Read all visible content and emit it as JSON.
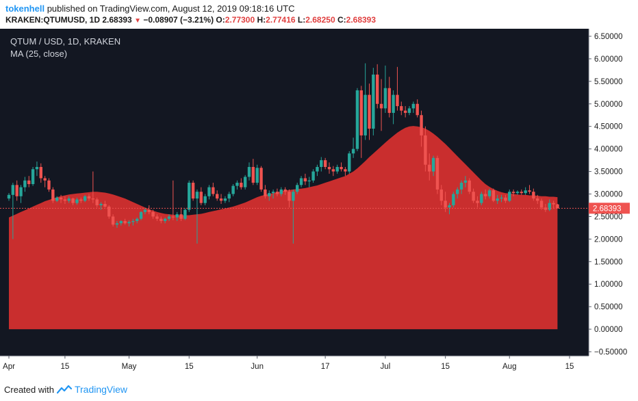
{
  "header": {
    "author": "tokenhell",
    "published_text": "published on TradingView.com, August 12, 2019 09:18:16 UTC"
  },
  "symbol_line": {
    "symbol": "KRAKEN:QTUMUSD, 1D",
    "last": "2.68393",
    "arrow": "▼",
    "change": "−0.08907 (−3.21%)",
    "o_label": "O:",
    "o_value": "2.77300",
    "h_label": "H:",
    "h_value": "2.77416",
    "l_label": "L:",
    "l_value": "2.68250",
    "c_label": "C:",
    "c_value": "2.68393"
  },
  "legend": {
    "title": "QTUM / USD, 1D, KRAKEN",
    "indicator": "MA (25, close)"
  },
  "footer": {
    "created_with": "Created with",
    "brand": "TradingView"
  },
  "colors": {
    "background": "#131722",
    "up": "#26a69a",
    "down": "#ef5350",
    "ma_fill": "#d32f2f",
    "price_label": "#ef5350",
    "brand": "#2196f3"
  },
  "chart_data": {
    "type": "candlestick",
    "ylim": [
      -0.5,
      6.5
    ],
    "yticks": [
      "6.50000",
      "6.00000",
      "5.50000",
      "5.00000",
      "4.50000",
      "4.00000",
      "3.50000",
      "3.00000",
      "2.50000",
      "2.00000",
      "1.50000",
      "1.00000",
      "0.50000",
      "0.00000",
      "−0.50000"
    ],
    "xticks": [
      "Apr",
      "15",
      "May",
      "15",
      "Jun",
      "17",
      "Jul",
      "15",
      "Aug",
      "15"
    ],
    "last_price_label": "2.68393",
    "last_price": 2.68393,
    "candles_ohlc": [
      [
        2.9,
        3.02,
        2.85,
        2.98
      ],
      [
        2.98,
        3.25,
        2.0,
        3.2
      ],
      [
        3.2,
        3.3,
        2.85,
        2.95
      ],
      [
        2.95,
        3.2,
        2.8,
        3.15
      ],
      [
        3.15,
        3.38,
        3.05,
        3.3
      ],
      [
        3.3,
        3.4,
        3.15,
        3.22
      ],
      [
        3.22,
        3.6,
        3.18,
        3.55
      ],
      [
        3.55,
        3.72,
        3.4,
        3.6
      ],
      [
        3.6,
        3.68,
        3.25,
        3.35
      ],
      [
        3.35,
        3.4,
        3.15,
        3.3
      ],
      [
        3.3,
        3.35,
        3.05,
        3.1
      ],
      [
        3.1,
        3.15,
        2.8,
        2.85
      ],
      [
        2.85,
        2.95,
        2.82,
        2.92
      ],
      [
        2.92,
        2.98,
        2.8,
        2.88
      ],
      [
        2.88,
        2.95,
        2.78,
        2.85
      ],
      [
        2.85,
        2.95,
        2.8,
        2.9
      ],
      [
        2.9,
        2.92,
        2.75,
        2.8
      ],
      [
        2.8,
        2.92,
        2.76,
        2.88
      ],
      [
        2.88,
        2.92,
        2.8,
        2.85
      ],
      [
        2.85,
        2.98,
        2.82,
        2.95
      ],
      [
        2.95,
        3.0,
        2.85,
        2.9
      ],
      [
        2.9,
        3.5,
        2.8,
        2.88
      ],
      [
        2.88,
        2.92,
        2.7,
        2.75
      ],
      [
        2.75,
        2.82,
        2.65,
        2.78
      ],
      [
        2.78,
        2.85,
        2.7,
        2.72
      ],
      [
        2.72,
        2.75,
        2.45,
        2.5
      ],
      [
        2.5,
        2.55,
        2.28,
        2.32
      ],
      [
        2.32,
        2.4,
        2.25,
        2.35
      ],
      [
        2.35,
        2.42,
        2.3,
        2.4
      ],
      [
        2.4,
        2.45,
        2.32,
        2.35
      ],
      [
        2.35,
        2.42,
        2.28,
        2.38
      ],
      [
        2.38,
        2.45,
        2.3,
        2.4
      ],
      [
        2.4,
        2.48,
        2.35,
        2.45
      ],
      [
        2.45,
        2.62,
        2.42,
        2.6
      ],
      [
        2.6,
        2.68,
        2.55,
        2.65
      ],
      [
        2.65,
        2.75,
        2.55,
        2.6
      ],
      [
        2.6,
        2.65,
        2.45,
        2.5
      ],
      [
        2.5,
        2.55,
        2.4,
        2.45
      ],
      [
        2.45,
        2.5,
        2.35,
        2.4
      ],
      [
        2.4,
        2.48,
        2.35,
        2.45
      ],
      [
        2.45,
        2.55,
        2.4,
        2.5
      ],
      [
        2.5,
        3.3,
        2.42,
        2.48
      ],
      [
        2.48,
        2.6,
        2.4,
        2.55
      ],
      [
        2.55,
        2.7,
        2.4,
        2.45
      ],
      [
        2.45,
        2.68,
        2.42,
        2.65
      ],
      [
        2.65,
        3.3,
        2.6,
        3.25
      ],
      [
        3.25,
        3.3,
        2.85,
        2.9
      ],
      [
        2.9,
        3.1,
        1.9,
        3.05
      ],
      [
        3.05,
        3.15,
        2.75,
        2.8
      ],
      [
        2.8,
        3.0,
        2.75,
        2.95
      ],
      [
        2.95,
        3.2,
        2.88,
        3.15
      ],
      [
        3.15,
        3.25,
        2.95,
        3.0
      ],
      [
        3.0,
        3.08,
        2.85,
        2.9
      ],
      [
        2.9,
        3.0,
        2.78,
        2.85
      ],
      [
        2.85,
        2.95,
        2.8,
        2.9
      ],
      [
        2.9,
        3.05,
        2.82,
        3.0
      ],
      [
        3.0,
        3.22,
        2.95,
        3.18
      ],
      [
        3.18,
        3.3,
        3.1,
        3.25
      ],
      [
        3.25,
        3.35,
        3.1,
        3.15
      ],
      [
        3.15,
        3.42,
        3.1,
        3.38
      ],
      [
        3.38,
        3.7,
        3.3,
        3.6
      ],
      [
        3.6,
        3.78,
        3.2,
        3.25
      ],
      [
        3.25,
        3.65,
        3.2,
        3.58
      ],
      [
        3.58,
        3.62,
        3.05,
        3.1
      ],
      [
        3.1,
        3.2,
        2.9,
        2.95
      ],
      [
        2.95,
        3.08,
        2.85,
        3.02
      ],
      [
        3.02,
        3.1,
        2.9,
        3.05
      ],
      [
        3.05,
        3.12,
        2.95,
        3.0
      ],
      [
        3.0,
        3.15,
        2.95,
        3.1
      ],
      [
        3.1,
        3.15,
        2.98,
        3.05
      ],
      [
        3.05,
        3.1,
        2.7,
        2.85
      ],
      [
        2.85,
        3.1,
        1.9,
        3.05
      ],
      [
        3.05,
        3.25,
        3.0,
        3.2
      ],
      [
        3.2,
        3.4,
        3.15,
        3.35
      ],
      [
        3.35,
        3.45,
        3.2,
        3.28
      ],
      [
        3.28,
        3.38,
        3.15,
        3.3
      ],
      [
        3.3,
        3.55,
        3.25,
        3.5
      ],
      [
        3.5,
        3.65,
        3.4,
        3.6
      ],
      [
        3.6,
        3.82,
        3.5,
        3.75
      ],
      [
        3.75,
        3.8,
        3.55,
        3.6
      ],
      [
        3.6,
        3.7,
        3.45,
        3.55
      ],
      [
        3.55,
        3.62,
        3.4,
        3.5
      ],
      [
        3.5,
        3.65,
        3.45,
        3.6
      ],
      [
        3.6,
        3.7,
        3.5,
        3.55
      ],
      [
        3.55,
        3.6,
        3.4,
        3.5
      ],
      [
        3.5,
        3.95,
        3.45,
        3.9
      ],
      [
        3.9,
        4.25,
        3.8,
        4.0
      ],
      [
        4.0,
        5.35,
        3.95,
        5.3
      ],
      [
        5.3,
        5.4,
        3.8,
        4.3
      ],
      [
        4.3,
        5.9,
        4.2,
        5.2
      ],
      [
        5.2,
        5.45,
        4.2,
        4.45
      ],
      [
        4.45,
        5.8,
        4.3,
        5.65
      ],
      [
        5.65,
        5.88,
        4.9,
        5.0
      ],
      [
        5.0,
        5.55,
        4.4,
        4.9
      ],
      [
        4.9,
        5.85,
        4.8,
        5.35
      ],
      [
        5.35,
        5.6,
        4.7,
        4.8
      ],
      [
        4.8,
        5.3,
        4.55,
        5.2
      ],
      [
        5.2,
        5.82,
        4.85,
        4.95
      ],
      [
        4.95,
        5.05,
        4.75,
        4.85
      ],
      [
        4.85,
        4.95,
        4.7,
        4.8
      ],
      [
        4.8,
        4.95,
        4.75,
        4.9
      ],
      [
        4.9,
        5.05,
        4.8,
        5.0
      ],
      [
        5.0,
        5.1,
        4.7,
        4.75
      ],
      [
        4.75,
        4.85,
        4.05,
        4.3
      ],
      [
        4.3,
        4.5,
        3.5,
        3.65
      ],
      [
        3.65,
        3.9,
        3.3,
        3.5
      ],
      [
        3.5,
        3.85,
        3.4,
        3.8
      ],
      [
        3.8,
        3.85,
        3.0,
        3.1
      ],
      [
        3.1,
        3.2,
        2.75,
        2.85
      ],
      [
        2.85,
        3.05,
        2.6,
        2.7
      ],
      [
        2.7,
        2.8,
        2.55,
        2.75
      ],
      [
        2.75,
        3.05,
        2.7,
        3.0
      ],
      [
        3.0,
        3.15,
        2.9,
        3.1
      ],
      [
        3.1,
        3.3,
        3.0,
        3.25
      ],
      [
        3.25,
        3.4,
        3.15,
        3.3
      ],
      [
        3.3,
        3.35,
        3.0,
        3.05
      ],
      [
        3.05,
        3.12,
        2.8,
        2.85
      ],
      [
        2.85,
        2.95,
        2.7,
        2.8
      ],
      [
        2.8,
        3.05,
        2.75,
        3.0
      ],
      [
        3.0,
        3.1,
        2.88,
        2.95
      ],
      [
        2.95,
        3.12,
        2.9,
        3.08
      ],
      [
        3.08,
        3.12,
        2.82,
        2.85
      ],
      [
        2.85,
        2.98,
        2.78,
        2.9
      ],
      [
        2.9,
        2.98,
        2.82,
        2.92
      ],
      [
        2.92,
        2.98,
        2.8,
        2.85
      ],
      [
        2.85,
        3.1,
        2.82,
        3.05
      ],
      [
        3.05,
        3.1,
        2.95,
        3.02
      ],
      [
        3.02,
        3.08,
        2.98,
        3.05
      ],
      [
        3.05,
        3.1,
        2.98,
        3.02
      ],
      [
        3.02,
        3.15,
        2.98,
        3.08
      ],
      [
        3.08,
        3.2,
        3.0,
        3.05
      ],
      [
        3.05,
        3.12,
        2.85,
        2.9
      ],
      [
        2.9,
        2.98,
        2.78,
        2.85
      ],
      [
        2.85,
        2.9,
        2.65,
        2.7
      ],
      [
        2.7,
        2.78,
        2.6,
        2.65
      ],
      [
        2.65,
        2.88,
        2.62,
        2.8
      ],
      [
        2.8,
        2.85,
        2.68,
        2.77
      ],
      [
        2.77,
        2.78,
        2.68,
        2.68
      ]
    ],
    "ma25": [
      2.48,
      2.52,
      2.56,
      2.6,
      2.64,
      2.68,
      2.72,
      2.76,
      2.8,
      2.84,
      2.87,
      2.9,
      2.93,
      2.95,
      2.97,
      2.99,
      3.0,
      3.01,
      3.02,
      3.03,
      3.04,
      3.05,
      3.05,
      3.04,
      3.03,
      3.01,
      2.99,
      2.96,
      2.93,
      2.9,
      2.86,
      2.82,
      2.78,
      2.74,
      2.7,
      2.66,
      2.63,
      2.6,
      2.58,
      2.56,
      2.55,
      2.54,
      2.53,
      2.53,
      2.53,
      2.53,
      2.54,
      2.55,
      2.56,
      2.58,
      2.6,
      2.62,
      2.64,
      2.66,
      2.68,
      2.7,
      2.72,
      2.75,
      2.78,
      2.81,
      2.85,
      2.89,
      2.93,
      2.96,
      2.98,
      3.0,
      3.02,
      3.04,
      3.06,
      3.08,
      3.09,
      3.1,
      3.11,
      3.12,
      3.13,
      3.15,
      3.17,
      3.19,
      3.22,
      3.25,
      3.28,
      3.31,
      3.34,
      3.37,
      3.4,
      3.45,
      3.5,
      3.57,
      3.65,
      3.73,
      3.82,
      3.9,
      3.98,
      4.06,
      4.14,
      4.22,
      4.29,
      4.36,
      4.42,
      4.47,
      4.5,
      4.51,
      4.5,
      4.48,
      4.45,
      4.4,
      4.34,
      4.27,
      4.19,
      4.11,
      4.02,
      3.93,
      3.84,
      3.75,
      3.66,
      3.57,
      3.48,
      3.39,
      3.3,
      3.22,
      3.16,
      3.11,
      3.07,
      3.04,
      3.02,
      3.01,
      3.0,
      2.99,
      2.98,
      2.98,
      2.97,
      2.97,
      2.96,
      2.95,
      2.95,
      2.94,
      2.94,
      2.93
    ]
  }
}
